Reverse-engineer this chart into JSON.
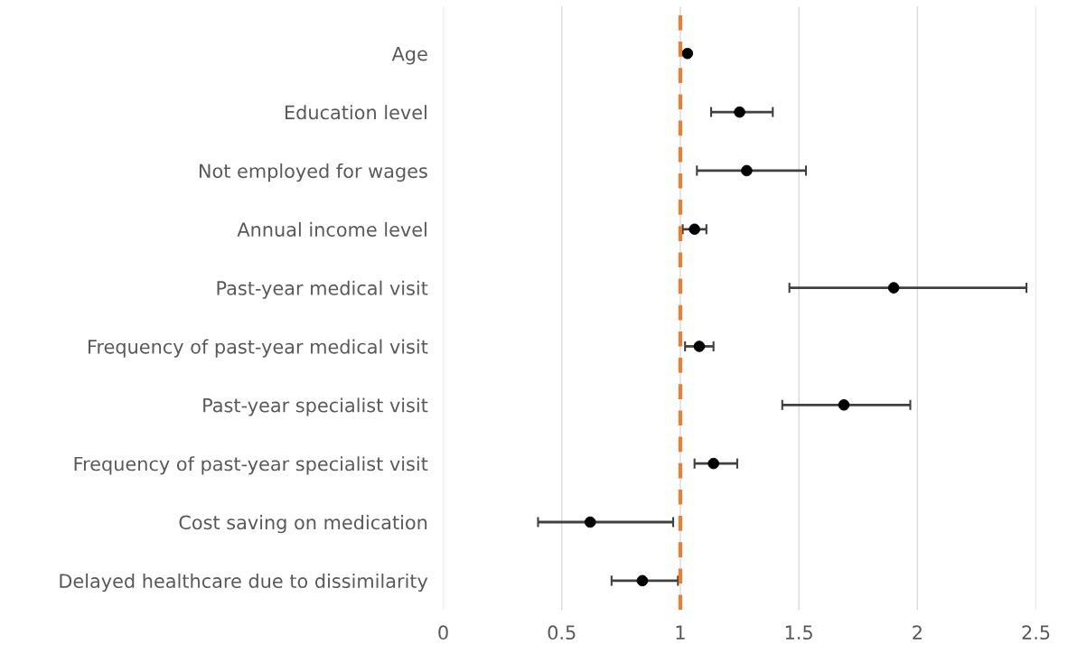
{
  "chart_data": {
    "type": "scatter",
    "orientation": "horizontal",
    "categories": [
      "Age",
      "Education level",
      "Not employed for wages",
      "Annual income level",
      "Past-year medical visit",
      "Frequency of past-year medical visit",
      "Past-year specialist visit",
      "Frequency of past-year specialist visit",
      "Cost saving on medication",
      "Delayed healthcare due to dissimilarity"
    ],
    "color": "#000000",
    "values": [
      1.03,
      1.25,
      1.28,
      1.06,
      1.9,
      1.08,
      1.69,
      1.14,
      0.62,
      0.84
    ],
    "errors": [
      null,
      [
        1.13,
        1.39
      ],
      [
        1.07,
        1.53
      ],
      [
        1.01,
        1.11
      ],
      [
        1.46,
        2.46
      ],
      [
        1.02,
        1.14
      ],
      [
        1.43,
        1.97
      ],
      [
        1.06,
        1.24
      ],
      [
        0.4,
        0.97
      ],
      [
        0.71,
        0.99
      ]
    ],
    "xlim": [
      0,
      2.5
    ],
    "xticks": [
      0,
      0.5,
      1,
      1.5,
      2,
      2.5
    ],
    "grid": "x",
    "marker": "circle",
    "ref_lines": [
      {
        "axis": "x",
        "value": 1,
        "color": "#ed7d31",
        "line_style": "dashed"
      }
    ]
  }
}
